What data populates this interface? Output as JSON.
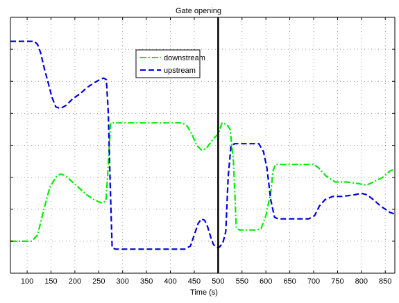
{
  "chart_data": {
    "type": "line",
    "title": "Gate opening",
    "xlabel": "Time (s)",
    "ylabel": "",
    "xlim": [
      65,
      870
    ],
    "ylim": [
      0,
      8
    ],
    "x_ticks": [
      100,
      150,
      200,
      250,
      300,
      350,
      400,
      450,
      500,
      550,
      600,
      650,
      700,
      750,
      800,
      850
    ],
    "y_gridlines": [
      1,
      2,
      3,
      4,
      5,
      6,
      7
    ],
    "grid": true,
    "legend_position": "upper-center",
    "vertical_marker_x": 500,
    "series": [
      {
        "name": "downstream",
        "color": "#00ee00",
        "dash": "dash-dot",
        "points": [
          [
            65,
            1.0
          ],
          [
            110,
            1.0
          ],
          [
            122,
            1.2
          ],
          [
            135,
            2.0
          ],
          [
            148,
            2.7
          ],
          [
            160,
            3.0
          ],
          [
            170,
            3.1
          ],
          [
            180,
            3.05
          ],
          [
            195,
            2.85
          ],
          [
            210,
            2.65
          ],
          [
            225,
            2.45
          ],
          [
            240,
            2.3
          ],
          [
            255,
            2.2
          ],
          [
            265,
            2.25
          ],
          [
            268,
            2.9
          ],
          [
            275,
            4.7
          ],
          [
            285,
            4.7
          ],
          [
            400,
            4.7
          ],
          [
            425,
            4.7
          ],
          [
            435,
            4.6
          ],
          [
            445,
            4.35
          ],
          [
            455,
            4.0
          ],
          [
            465,
            3.85
          ],
          [
            475,
            3.9
          ],
          [
            485,
            4.1
          ],
          [
            493,
            4.25
          ],
          [
            500,
            4.35
          ],
          [
            508,
            4.7
          ],
          [
            518,
            4.65
          ],
          [
            525,
            4.5
          ],
          [
            532,
            3.5
          ],
          [
            538,
            1.4
          ],
          [
            545,
            1.35
          ],
          [
            580,
            1.35
          ],
          [
            590,
            1.4
          ],
          [
            600,
            1.8
          ],
          [
            610,
            2.5
          ],
          [
            615,
            3.2
          ],
          [
            620,
            3.4
          ],
          [
            700,
            3.4
          ],
          [
            710,
            3.3
          ],
          [
            725,
            3.05
          ],
          [
            745,
            2.85
          ],
          [
            770,
            2.85
          ],
          [
            795,
            2.8
          ],
          [
            810,
            2.75
          ],
          [
            825,
            2.85
          ],
          [
            845,
            3.0
          ],
          [
            860,
            3.2
          ],
          [
            870,
            3.25
          ]
        ]
      },
      {
        "name": "upstream",
        "color": "#0000dd",
        "dash": "dash",
        "points": [
          [
            65,
            7.25
          ],
          [
            115,
            7.25
          ],
          [
            122,
            7.15
          ],
          [
            128,
            6.9
          ],
          [
            136,
            6.4
          ],
          [
            145,
            5.9
          ],
          [
            152,
            5.5
          ],
          [
            160,
            5.2
          ],
          [
            170,
            5.15
          ],
          [
            182,
            5.25
          ],
          [
            195,
            5.45
          ],
          [
            210,
            5.6
          ],
          [
            225,
            5.8
          ],
          [
            240,
            5.95
          ],
          [
            252,
            6.05
          ],
          [
            260,
            6.1
          ],
          [
            266,
            6.05
          ],
          [
            270,
            5.0
          ],
          [
            274,
            2.8
          ],
          [
            278,
            0.8
          ],
          [
            285,
            0.75
          ],
          [
            430,
            0.75
          ],
          [
            442,
            0.85
          ],
          [
            450,
            1.2
          ],
          [
            458,
            1.55
          ],
          [
            465,
            1.7
          ],
          [
            472,
            1.65
          ],
          [
            478,
            1.45
          ],
          [
            484,
            1.15
          ],
          [
            490,
            0.9
          ],
          [
            497,
            0.8
          ],
          [
            503,
            0.82
          ],
          [
            510,
            0.95
          ],
          [
            516,
            1.3
          ],
          [
            521,
            3.0
          ],
          [
            527,
            4.0
          ],
          [
            535,
            4.05
          ],
          [
            585,
            4.05
          ],
          [
            595,
            3.8
          ],
          [
            602,
            3.3
          ],
          [
            610,
            2.3
          ],
          [
            618,
            1.75
          ],
          [
            625,
            1.7
          ],
          [
            690,
            1.7
          ],
          [
            702,
            1.8
          ],
          [
            712,
            2.1
          ],
          [
            724,
            2.3
          ],
          [
            740,
            2.4
          ],
          [
            760,
            2.4
          ],
          [
            785,
            2.45
          ],
          [
            800,
            2.5
          ],
          [
            812,
            2.45
          ],
          [
            825,
            2.3
          ],
          [
            840,
            2.1
          ],
          [
            860,
            1.9
          ],
          [
            870,
            1.85
          ]
        ]
      }
    ]
  }
}
